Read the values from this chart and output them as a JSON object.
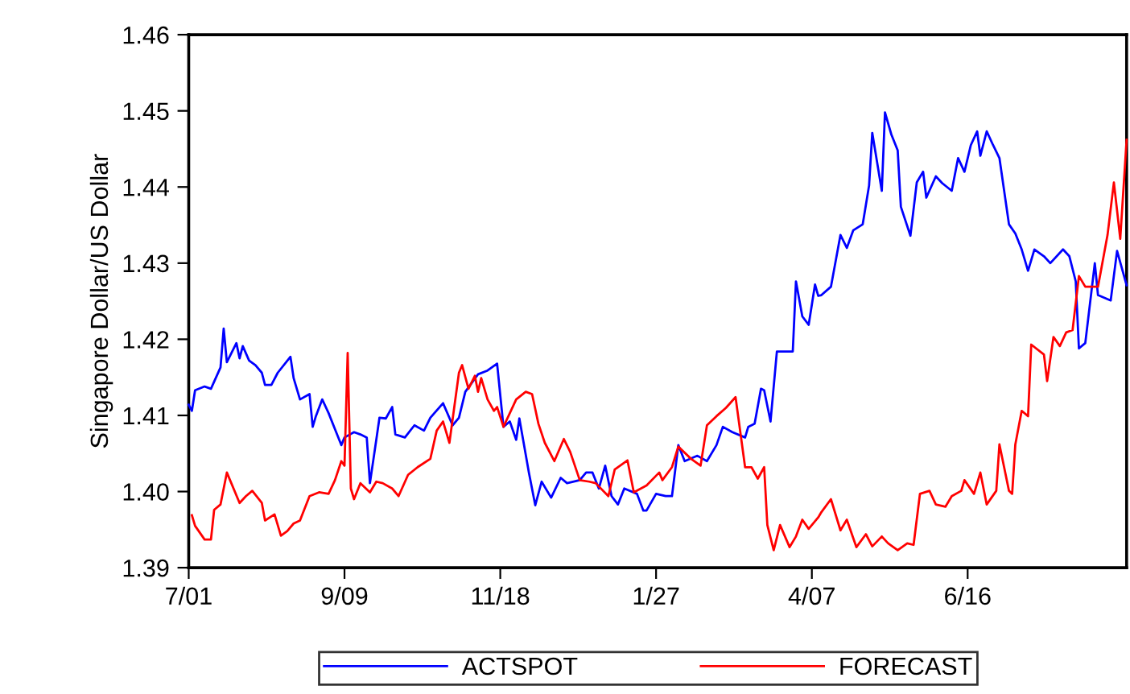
{
  "chart_data": {
    "type": "line",
    "ylabel": "Singapore Dollar/US Dollar",
    "categories": [
      "7/01",
      null,
      null,
      null,
      null,
      null,
      null,
      null,
      null,
      null,
      null,
      null,
      null,
      null,
      null,
      null,
      null,
      null,
      null,
      null,
      null,
      null,
      null,
      null,
      null,
      null,
      null,
      null,
      null,
      null,
      null,
      null,
      null,
      null,
      null,
      null,
      null,
      null,
      null,
      null,
      null,
      null,
      null,
      null,
      null,
      null,
      null,
      null,
      null,
      "9/09",
      null,
      null,
      null,
      null,
      null,
      null,
      null,
      null,
      null,
      null,
      null,
      null,
      null,
      null,
      null,
      null,
      null,
      null,
      null,
      null,
      null,
      null,
      null,
      null,
      null,
      null,
      null,
      null,
      null,
      null,
      null,
      null,
      null,
      null,
      null,
      null,
      null,
      null,
      null,
      null,
      null,
      null,
      null,
      null,
      null,
      null,
      null,
      null,
      "11/18",
      null,
      null,
      null,
      null,
      null,
      null,
      null,
      null,
      null,
      null,
      null,
      null,
      null,
      null,
      null,
      null,
      null,
      null,
      null,
      null,
      null,
      null,
      null,
      null,
      null,
      null,
      null,
      null,
      null,
      null,
      null,
      null,
      null,
      null,
      null,
      null,
      null,
      null,
      null,
      null,
      null,
      null,
      null,
      null,
      null,
      null,
      null,
      null,
      "1/27",
      null,
      null,
      null,
      null,
      null,
      null,
      null,
      null,
      null,
      null,
      null,
      null,
      null,
      null,
      null,
      null,
      null,
      null,
      null,
      null,
      null,
      null,
      null,
      null,
      null,
      null,
      null,
      null,
      null,
      null,
      null,
      null,
      null,
      null,
      null,
      null,
      null,
      null,
      null,
      null,
      null,
      null,
      null,
      null,
      null,
      null,
      null,
      null,
      "4/07",
      null,
      null,
      null,
      null,
      null,
      null,
      null,
      null,
      null,
      null,
      null,
      null,
      null,
      null,
      null,
      null,
      null,
      null,
      null,
      null,
      null,
      null,
      null,
      null,
      null,
      null,
      null,
      null,
      null,
      null,
      null,
      null,
      null,
      null,
      null,
      null,
      null,
      null,
      null,
      null,
      null,
      null,
      null,
      null,
      null,
      null,
      null,
      null,
      "6/16",
      null,
      null,
      null,
      null,
      null,
      null,
      null,
      null,
      null,
      null,
      null,
      null,
      null,
      null,
      null,
      null,
      null,
      null,
      null,
      null,
      null,
      null,
      null,
      null,
      null,
      null,
      null,
      null,
      null,
      null,
      null,
      null,
      null,
      null,
      null,
      null,
      null,
      null,
      null,
      null,
      null,
      null,
      null,
      null,
      null,
      null,
      null,
      null,
      null,
      null
    ],
    "ylim": [
      1.39,
      1.46
    ],
    "yticks": [
      {
        "value": 1.39,
        "label": "1.39"
      },
      {
        "value": 1.4,
        "label": "1.40"
      },
      {
        "value": 1.41,
        "label": "1.41"
      },
      {
        "value": 1.42,
        "label": "1.42"
      },
      {
        "value": 1.43,
        "label": "1.43"
      },
      {
        "value": 1.44,
        "label": "1.44"
      },
      {
        "value": 1.45,
        "label": "1.45"
      },
      {
        "value": 1.46,
        "label": "1.46"
      }
    ],
    "grid": false,
    "legend": "bottom",
    "marker": "none",
    "line_style": "solid",
    "series": [
      {
        "name": "ACTSPOT",
        "color": "#0000ff",
        "values": [
          1.4114,
          1.4106,
          1.4133,
          null,
          null,
          1.4138,
          null,
          1.4135,
          null,
          null,
          1.4163,
          1.4214,
          1.417,
          null,
          null,
          1.4195,
          1.4175,
          1.4191,
          null,
          1.4172,
          null,
          1.4166,
          null,
          1.4156,
          1.414,
          null,
          1.414,
          null,
          1.4156,
          null,
          null,
          null,
          1.4177,
          1.4149,
          null,
          1.4121,
          null,
          null,
          1.4128,
          1.4085,
          1.4099,
          null,
          1.4121,
          null,
          1.4103,
          null,
          1.4082,
          null,
          1.4061,
          1.4071,
          null,
          null,
          1.4078,
          null,
          1.4075,
          null,
          1.4071,
          1.4011,
          null,
          1.4068,
          1.4097,
          null,
          1.4096,
          null,
          1.4111,
          1.4075,
          null,
          null,
          1.4071,
          null,
          null,
          1.4087,
          null,
          null,
          1.408,
          null,
          1.4097,
          null,
          null,
          null,
          1.4116,
          null,
          null,
          1.4087,
          null,
          1.4097,
          null,
          1.4131,
          null,
          null,
          null,
          1.4154,
          null,
          null,
          1.4159,
          null,
          null,
          1.4168,
          null,
          1.4085,
          null,
          1.4092,
          null,
          1.4068,
          1.4096,
          null,
          null,
          1.4025,
          null,
          1.3982,
          null,
          1.4013,
          null,
          null,
          1.3992,
          null,
          null,
          1.4018,
          null,
          1.4011,
          null,
          null,
          null,
          1.4015,
          null,
          1.4025,
          null,
          1.4025,
          null,
          1.4004,
          null,
          1.4034,
          null,
          1.3994,
          null,
          1.3983,
          null,
          1.4004,
          null,
          null,
          null,
          1.3997,
          null,
          1.3975,
          1.3975,
          null,
          null,
          1.3997,
          null,
          null,
          1.3994,
          null,
          1.3994,
          null,
          1.4061,
          null,
          1.404,
          null,
          null,
          null,
          1.4047,
          null,
          null,
          1.404,
          null,
          null,
          1.4061,
          null,
          1.4085,
          null,
          null,
          1.4078,
          null,
          null,
          null,
          1.4071,
          1.4085,
          null,
          1.4089,
          null,
          1.4135,
          1.4133,
          null,
          1.4092,
          null,
          1.4184,
          null,
          null,
          null,
          null,
          1.4184,
          1.4276,
          null,
          1.423,
          null,
          1.4219,
          null,
          1.4272,
          1.4257,
          1.4258,
          null,
          null,
          1.4269,
          null,
          null,
          1.4337,
          null,
          1.432,
          null,
          1.4343,
          null,
          null,
          1.4351,
          null,
          1.4402,
          1.4471,
          null,
          null,
          1.4395,
          1.4498,
          null,
          1.4469,
          null,
          1.4448,
          1.4374,
          null,
          null,
          1.4336,
          null,
          1.4406,
          null,
          1.442,
          1.4386,
          null,
          null,
          1.4414,
          null,
          1.4405,
          null,
          null,
          1.4395,
          null,
          1.4438,
          null,
          1.442,
          null,
          1.4455,
          null,
          1.4473,
          1.4441,
          null,
          1.4473,
          null,
          1.4455,
          null,
          1.4438,
          null,
          null,
          1.4351,
          null,
          1.4339,
          null,
          1.4318,
          null,
          1.429,
          null,
          1.4318,
          null,
          null,
          1.4309,
          null,
          1.43,
          null,
          null,
          null,
          1.4318,
          null,
          1.4309,
          null,
          1.4276,
          1.4188,
          null,
          1.4195,
          null,
          null,
          1.43,
          1.4258,
          null,
          null,
          null,
          1.4251,
          null,
          1.4316,
          null,
          null,
          1.4271
        ]
      },
      {
        "name": "FORECAST",
        "color": "#ff0000",
        "values": [
          null,
          1.3969,
          1.3955,
          null,
          null,
          1.3937,
          null,
          1.3937,
          1.3976,
          null,
          1.3983,
          null,
          1.4025,
          null,
          null,
          null,
          1.3985,
          null,
          1.3994,
          null,
          1.4001,
          null,
          null,
          1.3985,
          1.3962,
          null,
          null,
          1.397,
          null,
          1.3942,
          null,
          1.3948,
          null,
          1.3958,
          null,
          1.3962,
          null,
          null,
          1.3994,
          null,
          null,
          1.3999,
          null,
          null,
          1.3997,
          null,
          1.4015,
          null,
          1.404,
          1.4034,
          1.4182,
          1.4004,
          1.399,
          null,
          1.4011,
          null,
          null,
          1.3999,
          null,
          1.4013,
          null,
          1.4011,
          null,
          null,
          1.4004,
          null,
          1.3994,
          null,
          null,
          1.4022,
          null,
          null,
          1.4032,
          null,
          null,
          null,
          1.4043,
          null,
          1.408,
          null,
          1.4092,
          null,
          1.4064,
          null,
          null,
          1.4156,
          1.4166,
          null,
          1.4135,
          null,
          1.4152,
          1.4131,
          1.4149,
          null,
          1.4121,
          null,
          1.4106,
          1.4111,
          null,
          1.4085,
          null,
          null,
          null,
          1.4121,
          null,
          null,
          1.4131,
          null,
          1.4128,
          null,
          1.4089,
          null,
          1.4064,
          null,
          null,
          1.404,
          null,
          null,
          1.4069,
          null,
          1.4052,
          null,
          null,
          1.4015,
          null,
          null,
          1.4013,
          null,
          1.4011,
          null,
          null,
          null,
          1.3994,
          null,
          1.4029,
          null,
          null,
          null,
          1.4041,
          null,
          1.3999,
          null,
          null,
          null,
          1.4008,
          null,
          null,
          null,
          1.4025,
          1.4015,
          null,
          null,
          1.4032,
          null,
          1.4059,
          null,
          null,
          null,
          1.4043,
          null,
          null,
          1.4034,
          null,
          1.4087,
          null,
          null,
          1.4099,
          null,
          null,
          1.411,
          null,
          null,
          1.4124,
          null,
          null,
          1.4032,
          null,
          1.4032,
          null,
          1.4017,
          null,
          1.4032,
          1.3956,
          null,
          1.3923,
          null,
          1.3956,
          null,
          null,
          1.3927,
          null,
          1.3941,
          null,
          1.3963,
          null,
          1.3951,
          null,
          null,
          1.3966,
          1.3973,
          null,
          null,
          1.399,
          null,
          null,
          1.3949,
          null,
          1.3963,
          null,
          null,
          1.3927,
          null,
          null,
          1.3944,
          null,
          1.3928,
          null,
          null,
          1.3941,
          null,
          1.3932,
          null,
          null,
          1.3923,
          null,
          null,
          1.3932,
          null,
          1.393,
          null,
          1.3997,
          null,
          null,
          1.4001,
          null,
          1.3983,
          null,
          null,
          1.398,
          null,
          1.3994,
          null,
          null,
          1.4001,
          1.4015,
          null,
          null,
          1.3997,
          null,
          1.4025,
          null,
          1.3983,
          null,
          null,
          1.4001,
          1.4062,
          null,
          null,
          1.4001,
          1.3997,
          1.4062,
          null,
          1.4106,
          null,
          1.4099,
          1.4193,
          null,
          null,
          null,
          1.418,
          1.4145,
          null,
          1.4203,
          null,
          1.4191,
          null,
          1.4209,
          null,
          1.4212,
          null,
          1.4283,
          null,
          1.4269,
          null,
          null,
          null,
          1.4269,
          null,
          null,
          1.4337,
          null,
          1.4406,
          null,
          1.4332,
          null,
          1.4462
        ]
      }
    ]
  }
}
